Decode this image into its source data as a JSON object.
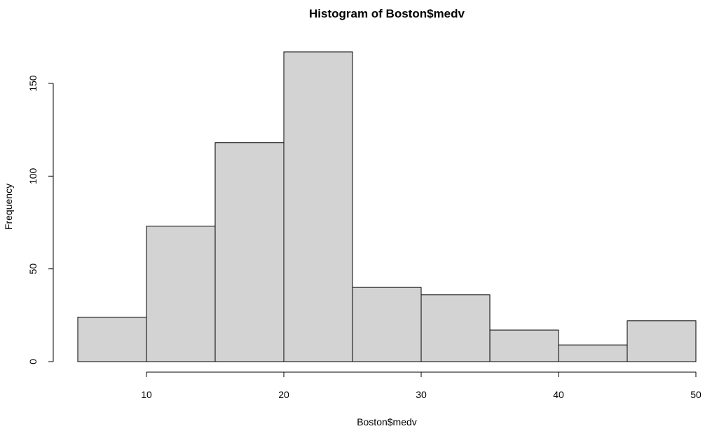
{
  "chart_data": {
    "type": "bar",
    "title": "Histogram of Boston$medv",
    "xlabel": "Boston$medv",
    "ylabel": "Frequency",
    "bins": [
      {
        "start": 5,
        "end": 10,
        "count": 24
      },
      {
        "start": 10,
        "end": 15,
        "count": 73
      },
      {
        "start": 15,
        "end": 20,
        "count": 118
      },
      {
        "start": 20,
        "end": 25,
        "count": 167
      },
      {
        "start": 25,
        "end": 30,
        "count": 40
      },
      {
        "start": 30,
        "end": 35,
        "count": 36
      },
      {
        "start": 35,
        "end": 40,
        "count": 17
      },
      {
        "start": 40,
        "end": 45,
        "count": 9
      },
      {
        "start": 45,
        "end": 50,
        "count": 22
      }
    ],
    "xlim": [
      5,
      50
    ],
    "ylim": [
      0,
      167
    ],
    "x_ticks": [
      10,
      20,
      30,
      40,
      50
    ],
    "y_ticks": [
      0,
      50,
      100,
      150
    ],
    "grid": false,
    "bar_color": "#d3d3d3"
  }
}
